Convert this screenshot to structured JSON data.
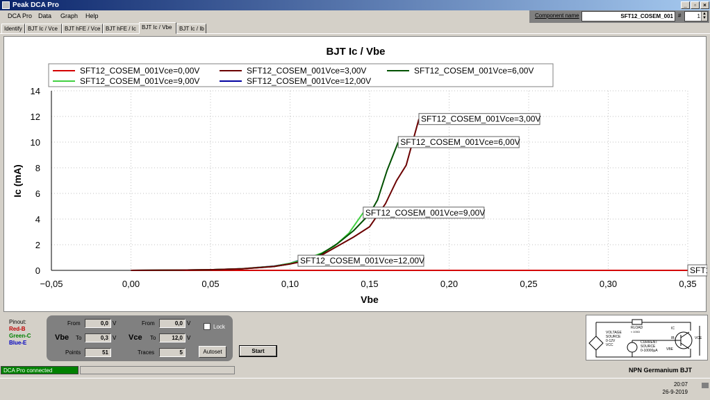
{
  "window": {
    "title": "Peak DCA Pro",
    "min": "_",
    "max": "▫",
    "close": "×"
  },
  "menu": [
    "DCA Pro",
    "Data",
    "Graph",
    "Help"
  ],
  "component": {
    "label": "Component name",
    "value": "SFT12_COSEM_001",
    "hash": "#",
    "index": "1"
  },
  "tabs": [
    "Identify",
    "BJT Ic / Vce",
    "BJT hFE / Vce",
    "BJT hFE / Ic",
    "BJT Ic / Vbe",
    "BJT Ic / Ib"
  ],
  "active_tab": 4,
  "chart_data": {
    "type": "line",
    "title": "BJT Ic / Vbe",
    "xlabel": "Vbe",
    "ylabel": "Ic (mA)",
    "xlim": [
      -0.05,
      0.35
    ],
    "ylim": [
      0,
      14
    ],
    "xticks": [
      "−0,05",
      "0,00",
      "0,05",
      "0,10",
      "0,15",
      "0,20",
      "0,25",
      "0,30",
      "0,35"
    ],
    "yticks": [
      "0",
      "2",
      "4",
      "6",
      "8",
      "10",
      "12",
      "14"
    ],
    "grid": true,
    "legend_position": "top",
    "series": [
      {
        "name": "SFT12_COSEM_001Vce=0,00V",
        "color": "#d40000",
        "label": "SFT12_COSEM_001Vce",
        "x": [
          0.0,
          0.05,
          0.1,
          0.15,
          0.2,
          0.25,
          0.3,
          0.35
        ],
        "y": [
          0,
          0,
          0,
          0,
          0,
          0,
          0,
          0
        ]
      },
      {
        "name": "SFT12_COSEM_001Vce=3,00V",
        "color": "#6b0000",
        "label": "SFT12_COSEM_001Vce=3,00V",
        "x": [
          0.0,
          0.03,
          0.05,
          0.07,
          0.09,
          0.1,
          0.11,
          0.12,
          0.13,
          0.14,
          0.15,
          0.16,
          0.167,
          0.173,
          0.181
        ],
        "y": [
          0,
          0.02,
          0.05,
          0.12,
          0.3,
          0.5,
          0.75,
          1.2,
          1.9,
          2.6,
          3.4,
          5.2,
          7.0,
          8.2,
          11.8
        ]
      },
      {
        "name": "SFT12_COSEM_001Vce=6,00V",
        "color": "#005000",
        "label": "SFT12_COSEM_001Vce=6,00V",
        "x": [
          0.0,
          0.03,
          0.05,
          0.07,
          0.09,
          0.1,
          0.11,
          0.12,
          0.13,
          0.14,
          0.15,
          0.155,
          0.161,
          0.168
        ],
        "y": [
          0,
          0.02,
          0.05,
          0.12,
          0.3,
          0.5,
          0.8,
          1.3,
          2.1,
          3.1,
          4.4,
          5.5,
          7.8,
          10.0
        ]
      },
      {
        "name": "SFT12_COSEM_001Vce=9,00V",
        "color": "#40d040",
        "label": "SFT12_COSEM_001Vce=9,00V",
        "x": [
          0.0,
          0.03,
          0.05,
          0.07,
          0.09,
          0.1,
          0.11,
          0.12,
          0.128,
          0.137,
          0.146
        ],
        "y": [
          0,
          0.02,
          0.05,
          0.13,
          0.32,
          0.55,
          0.9,
          1.35,
          1.9,
          2.9,
          4.5
        ]
      },
      {
        "name": "SFT12_COSEM_001Vce=12,00V",
        "color": "#0000a0",
        "label": "SFT12_COSEM_001Vce=12,00V",
        "x": [
          0.0,
          0.03,
          0.05,
          0.07,
          0.09,
          0.1,
          0.105
        ],
        "y": [
          0,
          0.02,
          0.05,
          0.13,
          0.33,
          0.55,
          0.75
        ]
      }
    ]
  },
  "pinout": {
    "title": "Pinout:",
    "b": "Red-B",
    "c": "Green-C",
    "e": "Blue-E"
  },
  "vbe": {
    "label": "Vbe",
    "from_label": "From",
    "from": "0,0",
    "to_label": "To",
    "to": "0,3",
    "unit": "V",
    "points_label": "Points",
    "points": "51"
  },
  "vce": {
    "label": "Vce",
    "from_label": "From",
    "from": "0,0",
    "to_label": "To",
    "to": "12,0",
    "unit": "V",
    "traces_label": "Traces",
    "traces": "5"
  },
  "lock_label": "Lock",
  "autoset_label": "Autoset",
  "start_label": "Start",
  "diagram": {
    "rload": "RLOAD",
    "rload_val": "≈ 100Ω",
    "ic": "IC",
    "ib": "IB",
    "vce": "VCE",
    "vbe": "VBE",
    "vsrc1": "VOLTAGE",
    "vsrc2": "SOURCE",
    "vsrc3": "0-12V",
    "vsrc4": "VCC",
    "isrc1": "CURRENT",
    "isrc2": "SOURCE",
    "isrc3": "0-10000µA"
  },
  "status": {
    "connected": "DCA Pro connected",
    "transistor_type": "NPN Germanium BJT"
  },
  "clock": {
    "time": "20:07",
    "date": "26-9-2019"
  }
}
